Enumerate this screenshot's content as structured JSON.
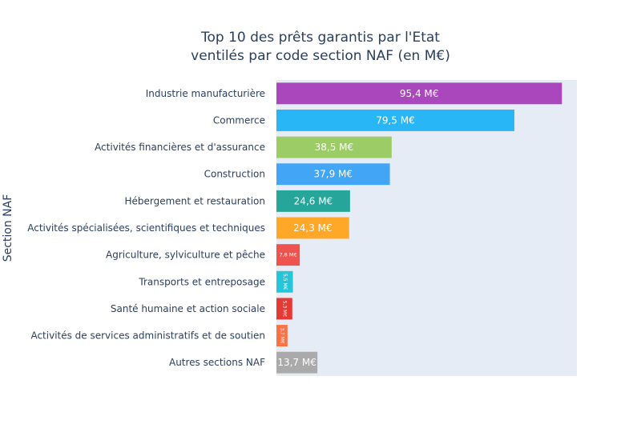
{
  "chart_data": {
    "type": "bar",
    "orientation": "horizontal",
    "title": [
      "Top 10 des prêts garantis par l'Etat",
      "ventilés par code section NAF (en M€)"
    ],
    "ylabel": "Section NAF",
    "xlabel": "",
    "xlim": [
      0,
      100.4
    ],
    "grid": false,
    "categories": [
      "Industrie manufacturière",
      "Commerce",
      "Activités financières et d'assurance",
      "Construction",
      "Hébergement et restauration",
      "Activités spécialisées, scientifiques et techniques",
      "Agriculture, sylviculture et pêche",
      "Transports et entreposage",
      "Santé humaine et action sociale",
      "Activités de services administratifs et de soutien",
      "Autres sections NAF"
    ],
    "values": [
      95.4,
      79.5,
      38.5,
      37.9,
      24.6,
      24.3,
      7.8,
      5.5,
      5.3,
      3.7,
      13.7
    ],
    "labels": [
      "95,4 M€",
      "79,5 M€",
      "38,5 M€",
      "37,9 M€",
      "24,6 M€",
      "24,3 M€",
      "7,8 M€",
      "5,5 M€",
      "5,3 M€",
      "3,7 M€",
      "13,7 M€"
    ],
    "colors": [
      "#ab47bc",
      "#29b6f6",
      "#9ccc65",
      "#42a5f5",
      "#26a69a",
      "#ffa726",
      "#ef5350",
      "#26c6da",
      "#e53935",
      "#ff7043",
      "#aaaaaa"
    ],
    "plot_background": "#e5ecf6"
  }
}
